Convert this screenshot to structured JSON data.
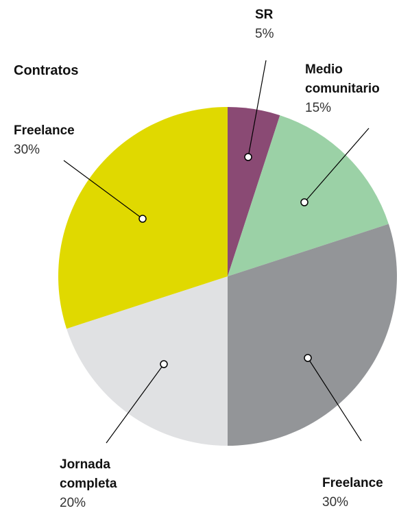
{
  "chart_data": {
    "type": "pie",
    "title": "Contratos",
    "categories": [
      "SR",
      "Medio comunitario",
      "Freelance",
      "Jornada completa",
      "Freelance"
    ],
    "values": [
      5,
      15,
      30,
      20,
      30
    ],
    "value_labels": [
      "5%",
      "15%",
      "30%",
      "20%",
      "30%"
    ],
    "colors": [
      "#8a4a74",
      "#9bd1a6",
      "#939598",
      "#e0e1e3",
      "#e0d900"
    ]
  }
}
